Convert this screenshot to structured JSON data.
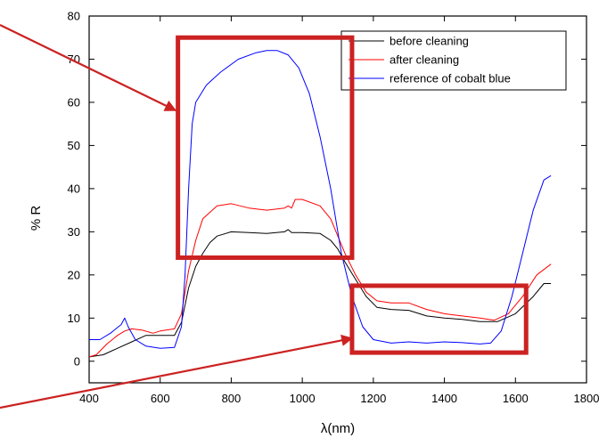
{
  "chart_data": {
    "type": "line",
    "xlabel": "λ(nm)",
    "ylabel": "% R",
    "xlim": [
      400,
      1800
    ],
    "ylim": [
      -5,
      80
    ],
    "x_ticks": [
      400,
      600,
      800,
      1000,
      1200,
      1400,
      1600,
      1800
    ],
    "y_ticks": [
      0,
      10,
      20,
      30,
      40,
      50,
      60,
      70,
      80
    ],
    "grid": false,
    "legend_position": "top-right",
    "series": [
      {
        "name": "before cleaning",
        "color": "#000000",
        "points": [
          [
            400,
            1
          ],
          [
            440,
            1.5
          ],
          [
            480,
            3
          ],
          [
            520,
            4.5
          ],
          [
            560,
            6
          ],
          [
            600,
            6
          ],
          [
            640,
            6
          ],
          [
            660,
            9
          ],
          [
            680,
            17
          ],
          [
            700,
            22
          ],
          [
            720,
            25
          ],
          [
            740,
            27.5
          ],
          [
            760,
            29
          ],
          [
            800,
            30
          ],
          [
            850,
            29.8
          ],
          [
            900,
            29.6
          ],
          [
            950,
            30
          ],
          [
            960,
            30.5
          ],
          [
            970,
            29.8
          ],
          [
            1000,
            29.8
          ],
          [
            1050,
            29.6
          ],
          [
            1080,
            28
          ],
          [
            1100,
            26
          ],
          [
            1120,
            23
          ],
          [
            1150,
            19
          ],
          [
            1180,
            15
          ],
          [
            1210,
            12.5
          ],
          [
            1250,
            12
          ],
          [
            1300,
            11.8
          ],
          [
            1350,
            10.5
          ],
          [
            1400,
            10
          ],
          [
            1450,
            9.7
          ],
          [
            1500,
            9.2
          ],
          [
            1550,
            9.2
          ],
          [
            1600,
            11
          ],
          [
            1650,
            15
          ],
          [
            1680,
            18
          ],
          [
            1700,
            18
          ]
        ]
      },
      {
        "name": "after cleaning",
        "color": "#ff0000",
        "points": [
          [
            400,
            1
          ],
          [
            420,
            1.5
          ],
          [
            450,
            4
          ],
          [
            480,
            6
          ],
          [
            500,
            7
          ],
          [
            520,
            7.5
          ],
          [
            550,
            7.2
          ],
          [
            580,
            6.5
          ],
          [
            600,
            7
          ],
          [
            640,
            7.5
          ],
          [
            660,
            11
          ],
          [
            680,
            21
          ],
          [
            700,
            28
          ],
          [
            720,
            33
          ],
          [
            760,
            36
          ],
          [
            800,
            36.5
          ],
          [
            850,
            35.5
          ],
          [
            900,
            35
          ],
          [
            950,
            35.5
          ],
          [
            960,
            36
          ],
          [
            970,
            35.5
          ],
          [
            980,
            37.5
          ],
          [
            1000,
            37.5
          ],
          [
            1050,
            36
          ],
          [
            1080,
            33
          ],
          [
            1100,
            29
          ],
          [
            1120,
            25
          ],
          [
            1150,
            20
          ],
          [
            1180,
            16
          ],
          [
            1210,
            14
          ],
          [
            1250,
            13.5
          ],
          [
            1300,
            13.5
          ],
          [
            1350,
            12
          ],
          [
            1400,
            11
          ],
          [
            1450,
            10.5
          ],
          [
            1500,
            10
          ],
          [
            1540,
            9.5
          ],
          [
            1580,
            11
          ],
          [
            1620,
            15
          ],
          [
            1660,
            20
          ],
          [
            1700,
            22.5
          ]
        ]
      },
      {
        "name": "reference of cobalt blue",
        "color": "#0000ff",
        "points": [
          [
            400,
            5
          ],
          [
            430,
            5
          ],
          [
            460,
            6.5
          ],
          [
            490,
            8.5
          ],
          [
            500,
            10
          ],
          [
            510,
            8
          ],
          [
            530,
            5
          ],
          [
            560,
            3.5
          ],
          [
            600,
            3
          ],
          [
            640,
            3.2
          ],
          [
            660,
            8
          ],
          [
            670,
            20
          ],
          [
            680,
            40
          ],
          [
            690,
            55
          ],
          [
            700,
            60
          ],
          [
            730,
            64
          ],
          [
            770,
            67
          ],
          [
            820,
            70
          ],
          [
            870,
            71.5
          ],
          [
            900,
            72
          ],
          [
            930,
            72
          ],
          [
            960,
            71
          ],
          [
            990,
            68
          ],
          [
            1020,
            62
          ],
          [
            1050,
            52
          ],
          [
            1080,
            40
          ],
          [
            1110,
            25
          ],
          [
            1140,
            15
          ],
          [
            1170,
            8
          ],
          [
            1200,
            5
          ],
          [
            1250,
            4.2
          ],
          [
            1300,
            4.5
          ],
          [
            1350,
            4.2
          ],
          [
            1400,
            4.5
          ],
          [
            1450,
            4.3
          ],
          [
            1500,
            4
          ],
          [
            1530,
            4.2
          ],
          [
            1560,
            7
          ],
          [
            1590,
            15
          ],
          [
            1620,
            25
          ],
          [
            1650,
            35
          ],
          [
            1680,
            42
          ],
          [
            1700,
            43
          ]
        ]
      }
    ],
    "annotations": [
      {
        "type": "rectangle",
        "color": "#cc2222",
        "x_range": [
          650,
          1140
        ],
        "y_range": [
          24,
          75
        ]
      },
      {
        "type": "rectangle",
        "color": "#cc2222",
        "x_range": [
          1140,
          1630
        ],
        "y_range": [
          2,
          17.5
        ]
      }
    ]
  }
}
